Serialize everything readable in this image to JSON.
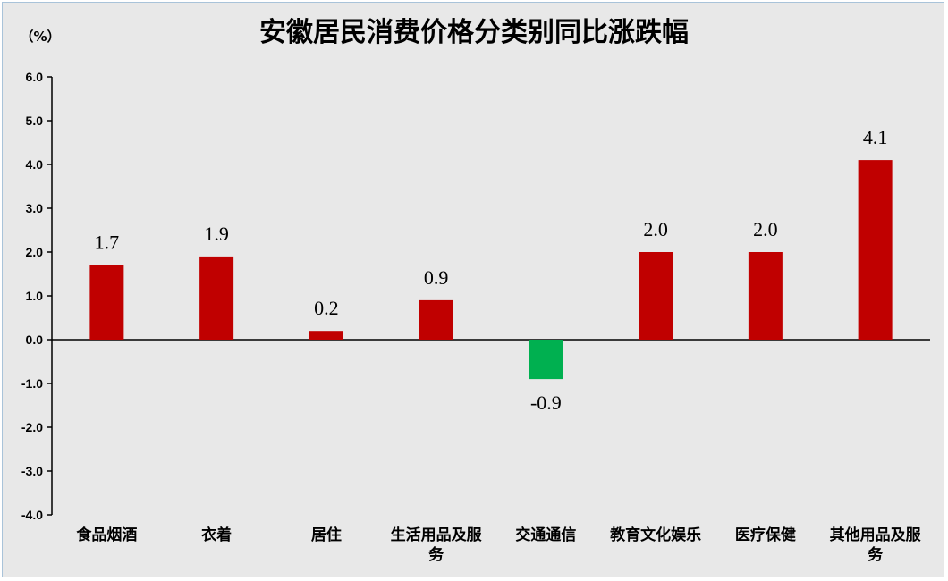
{
  "chart_data": {
    "type": "bar",
    "title": "安徽居民消费价格分类别同比涨跌幅",
    "unit_label": "（%）",
    "categories": [
      [
        "食品烟酒"
      ],
      [
        "衣着"
      ],
      [
        "居住"
      ],
      [
        "生活用品及服",
        "务"
      ],
      [
        "交通通信"
      ],
      [
        "教育文化娱乐"
      ],
      [
        "医疗保健"
      ],
      [
        "其他用品及服",
        "务"
      ]
    ],
    "values": [
      1.7,
      1.9,
      0.2,
      0.9,
      -0.9,
      2.0,
      2.0,
      4.1
    ],
    "value_labels": [
      "1.7",
      "1.9",
      "0.2",
      "0.9",
      "-0.9",
      "2.0",
      "2.0",
      "4.1"
    ],
    "ylim": [
      -4.0,
      6.0
    ],
    "yticks": [
      "6.0",
      "5.0",
      "4.0",
      "3.0",
      "2.0",
      "1.0",
      "0.0",
      "-1.0",
      "-2.0",
      "-3.0",
      "-4.0"
    ],
    "ytick_values": [
      6,
      5,
      4,
      3,
      2,
      1,
      0,
      -1,
      -2,
      -3,
      -4
    ],
    "colors": {
      "positive": "#c00000",
      "negative": "#00b050",
      "background": "#e8e8e8",
      "axis": "#000000"
    },
    "grid": false,
    "legend": "none"
  }
}
